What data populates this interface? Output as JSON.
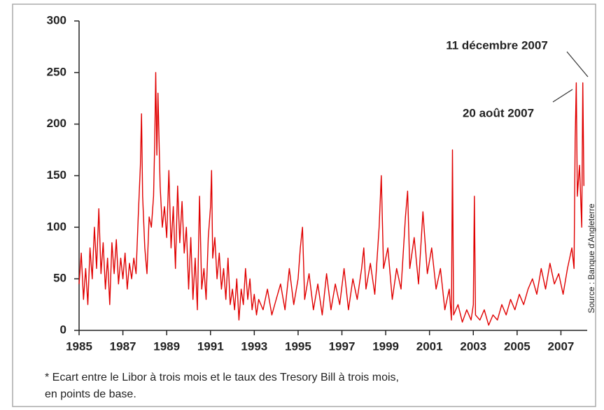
{
  "chart_data": {
    "type": "line",
    "annotations": [
      "11 décembre 2007",
      "20 août 2007"
    ],
    "source": "Source : Banque d'Angleterre",
    "note": [
      "* Ecart entre le Libor à trois mois et le taux des Tresory Bill à trois mois,",
      "en points de base."
    ],
    "color": "#e00000",
    "xlim": [
      1985,
      2008.2
    ],
    "ylim": [
      0,
      300
    ],
    "xticks": [
      1985,
      1987,
      1989,
      1991,
      1993,
      1995,
      1997,
      1999,
      2001,
      2003,
      2005,
      2007
    ],
    "yticks": [
      0,
      50,
      100,
      150,
      200,
      250,
      300
    ],
    "x": [
      1985.0,
      1985.1,
      1985.2,
      1985.3,
      1985.4,
      1985.5,
      1985.6,
      1985.7,
      1985.8,
      1985.9,
      1986.0,
      1986.1,
      1986.2,
      1986.3,
      1986.4,
      1986.5,
      1986.6,
      1986.7,
      1986.8,
      1986.9,
      1987.0,
      1987.1,
      1987.2,
      1987.3,
      1987.4,
      1987.5,
      1987.6,
      1987.7,
      1987.8,
      1987.85,
      1987.9,
      1988.0,
      1988.1,
      1988.2,
      1988.3,
      1988.4,
      1988.45,
      1988.5,
      1988.55,
      1988.6,
      1988.7,
      1988.8,
      1988.9,
      1989.0,
      1989.1,
      1989.2,
      1989.3,
      1989.4,
      1989.5,
      1989.6,
      1989.7,
      1989.8,
      1989.9,
      1990.0,
      1990.1,
      1990.2,
      1990.3,
      1990.4,
      1990.5,
      1990.6,
      1990.7,
      1990.8,
      1990.9,
      1991.0,
      1991.05,
      1991.1,
      1991.2,
      1991.3,
      1991.4,
      1991.5,
      1991.6,
      1991.7,
      1991.8,
      1991.9,
      1992.0,
      1992.1,
      1992.2,
      1992.3,
      1992.4,
      1992.5,
      1992.6,
      1992.7,
      1992.8,
      1992.9,
      1993.0,
      1993.1,
      1993.2,
      1993.4,
      1993.6,
      1993.8,
      1994.0,
      1994.2,
      1994.4,
      1994.6,
      1994.8,
      1995.0,
      1995.1,
      1995.2,
      1995.3,
      1995.5,
      1995.7,
      1995.9,
      1996.1,
      1996.3,
      1996.5,
      1996.7,
      1996.9,
      1997.1,
      1997.3,
      1997.5,
      1997.7,
      1997.9,
      1998.0,
      1998.1,
      1998.3,
      1998.5,
      1998.7,
      1998.8,
      1998.9,
      1999.1,
      1999.3,
      1999.5,
      1999.7,
      1999.9,
      2000.0,
      2000.1,
      2000.3,
      2000.5,
      2000.7,
      2000.9,
      2001.1,
      2001.3,
      2001.5,
      2001.7,
      2001.9,
      2002.0,
      2002.05,
      2002.1,
      2002.3,
      2002.5,
      2002.7,
      2002.9,
      2003.0,
      2003.05,
      2003.1,
      2003.3,
      2003.5,
      2003.7,
      2003.9,
      2004.1,
      2004.3,
      2004.5,
      2004.7,
      2004.9,
      2005.1,
      2005.3,
      2005.5,
      2005.7,
      2005.9,
      2006.1,
      2006.3,
      2006.5,
      2006.7,
      2006.9,
      2007.1,
      2007.3,
      2007.5,
      2007.6,
      2007.65,
      2007.7,
      2007.75,
      2007.85,
      2007.95,
      2008.0,
      2008.05
    ],
    "values": [
      45,
      75,
      30,
      60,
      25,
      80,
      50,
      100,
      60,
      118,
      55,
      85,
      40,
      70,
      25,
      85,
      55,
      88,
      45,
      70,
      50,
      75,
      40,
      65,
      50,
      70,
      55,
      110,
      160,
      210,
      130,
      80,
      55,
      110,
      100,
      130,
      180,
      250,
      170,
      230,
      140,
      100,
      120,
      90,
      155,
      80,
      120,
      60,
      140,
      85,
      125,
      75,
      100,
      40,
      90,
      30,
      70,
      20,
      130,
      40,
      60,
      30,
      90,
      120,
      155,
      70,
      90,
      50,
      75,
      40,
      60,
      30,
      70,
      25,
      40,
      20,
      50,
      10,
      40,
      25,
      60,
      30,
      50,
      20,
      35,
      15,
      30,
      20,
      40,
      15,
      30,
      45,
      20,
      60,
      25,
      50,
      80,
      100,
      30,
      55,
      20,
      45,
      15,
      55,
      20,
      45,
      25,
      60,
      20,
      50,
      30,
      60,
      80,
      40,
      65,
      35,
      100,
      150,
      60,
      80,
      30,
      60,
      40,
      110,
      135,
      60,
      90,
      45,
      115,
      55,
      80,
      40,
      60,
      20,
      40,
      10,
      175,
      15,
      25,
      8,
      20,
      10,
      25,
      130,
      15,
      10,
      20,
      5,
      15,
      10,
      25,
      15,
      30,
      20,
      35,
      25,
      40,
      50,
      35,
      60,
      40,
      65,
      45,
      55,
      35,
      60,
      80,
      60,
      185,
      240,
      130,
      160,
      100,
      240,
      140
    ]
  }
}
